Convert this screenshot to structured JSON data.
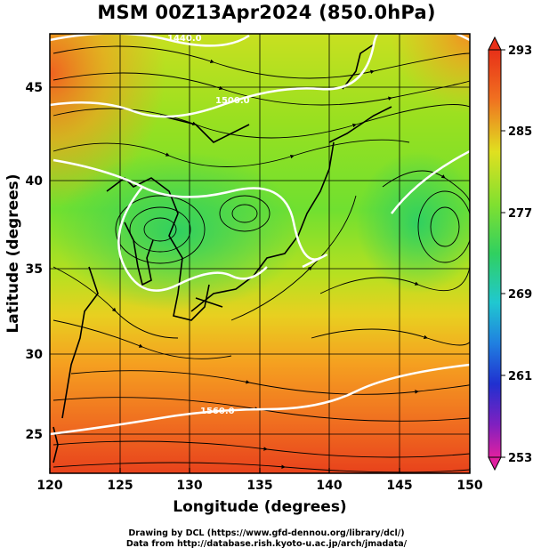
{
  "title": "MSM 00Z13Apr2024 (850.0hPa)",
  "axes": {
    "xlabel": "Longitude (degrees)",
    "ylabel": "Latitude  (degrees)",
    "xticks": [
      120,
      125,
      130,
      135,
      140,
      145,
      150
    ],
    "yticks": [
      25,
      30,
      35,
      40,
      45
    ],
    "xlim": [
      120,
      150
    ],
    "ylim": [
      22.4,
      47.6
    ]
  },
  "colorbar": {
    "ticks": [
      "293",
      "285",
      "277",
      "269",
      "261",
      "253"
    ],
    "min": 253,
    "max": 293
  },
  "contours": {
    "labels": [
      "1440.0",
      "1500.0",
      "1560.0"
    ]
  },
  "credits": {
    "line1": "Drawing by DCL (https://www.gfd-dennou.org/library/dcl/)",
    "line2": "Data from http://database.rish.kyoto-u.ac.jp/arch/jmadata/"
  }
}
